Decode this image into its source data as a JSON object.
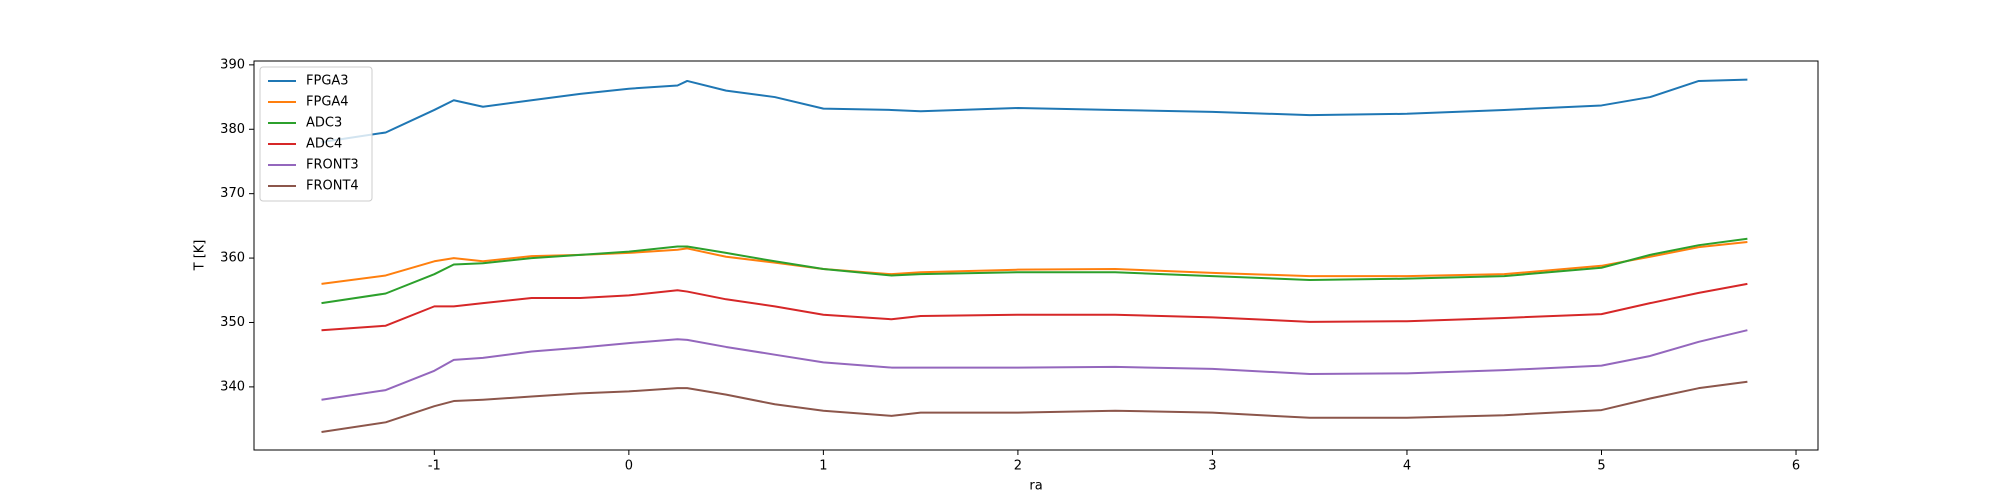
{
  "chart_data": {
    "type": "line",
    "x": [
      -1.58,
      -1.25,
      -1.0,
      -0.9,
      -0.75,
      -0.5,
      -0.25,
      0,
      0.25,
      0.3,
      0.5,
      0.75,
      1.0,
      1.35,
      1.5,
      2,
      2.5,
      3,
      3.5,
      4,
      4.5,
      5,
      5.25,
      5.5,
      5.75
    ],
    "series": [
      {
        "name": "FPGA3",
        "color": "#1f77b4",
        "values": [
          378,
          379.5,
          383,
          384.5,
          383.5,
          384.5,
          385.5,
          386.3,
          386.8,
          387.5,
          386,
          385,
          383.2,
          383,
          382.8,
          383.3,
          383,
          382.7,
          382.2,
          382.4,
          383,
          383.7,
          385,
          387.5,
          387.7
        ]
      },
      {
        "name": "FPGA4",
        "color": "#ff7f0e",
        "values": [
          356,
          357.3,
          359.5,
          360,
          359.5,
          360.3,
          360.5,
          360.8,
          361.3,
          361.5,
          360.2,
          359.3,
          358.3,
          357.5,
          357.8,
          358.2,
          358.3,
          357.7,
          357.2,
          357.2,
          357.5,
          358.8,
          360.2,
          361.7,
          362.5
        ]
      },
      {
        "name": "ADC3",
        "color": "#2ca02c",
        "values": [
          353,
          354.5,
          357.5,
          359,
          359.2,
          360,
          360.5,
          361,
          361.8,
          361.8,
          360.8,
          359.5,
          358.3,
          357.3,
          357.5,
          357.8,
          357.8,
          357.2,
          356.6,
          356.8,
          357.2,
          358.5,
          360.5,
          362,
          363
        ]
      },
      {
        "name": "ADC4",
        "color": "#d62728",
        "values": [
          348.8,
          349.5,
          352.5,
          352.5,
          353,
          353.8,
          353.8,
          354.2,
          355,
          354.8,
          353.6,
          352.5,
          351.2,
          350.5,
          351,
          351.2,
          351.2,
          350.8,
          350.1,
          350.2,
          350.7,
          351.3,
          353,
          354.6,
          356
        ]
      },
      {
        "name": "FRONT3",
        "color": "#9467bd",
        "values": [
          338,
          339.5,
          342.5,
          344.2,
          344.5,
          345.5,
          346.1,
          346.8,
          347.4,
          347.3,
          346.2,
          345,
          343.8,
          343,
          343,
          343,
          343.1,
          342.8,
          342,
          342.1,
          342.6,
          343.3,
          344.8,
          347,
          348.8
        ]
      },
      {
        "name": "FRONT4",
        "color": "#8c564b",
        "values": [
          333,
          334.5,
          337,
          337.8,
          338,
          338.5,
          339,
          339.3,
          339.8,
          339.8,
          338.8,
          337.3,
          336.3,
          335.5,
          336,
          336,
          336.3,
          336,
          335.2,
          335.2,
          335.6,
          336.4,
          338.2,
          339.8,
          340.8
        ]
      }
    ],
    "xlabel": "ra",
    "ylabel": "T [K]",
    "xlim": [
      -1.927,
      6.113
    ],
    "xticks": [
      -1,
      0,
      1,
      2,
      3,
      4,
      5,
      6
    ],
    "ylim": [
      330.2,
      390.6
    ],
    "yticks": [
      340,
      350,
      360,
      370,
      380,
      390
    ],
    "legend": "upper left"
  }
}
